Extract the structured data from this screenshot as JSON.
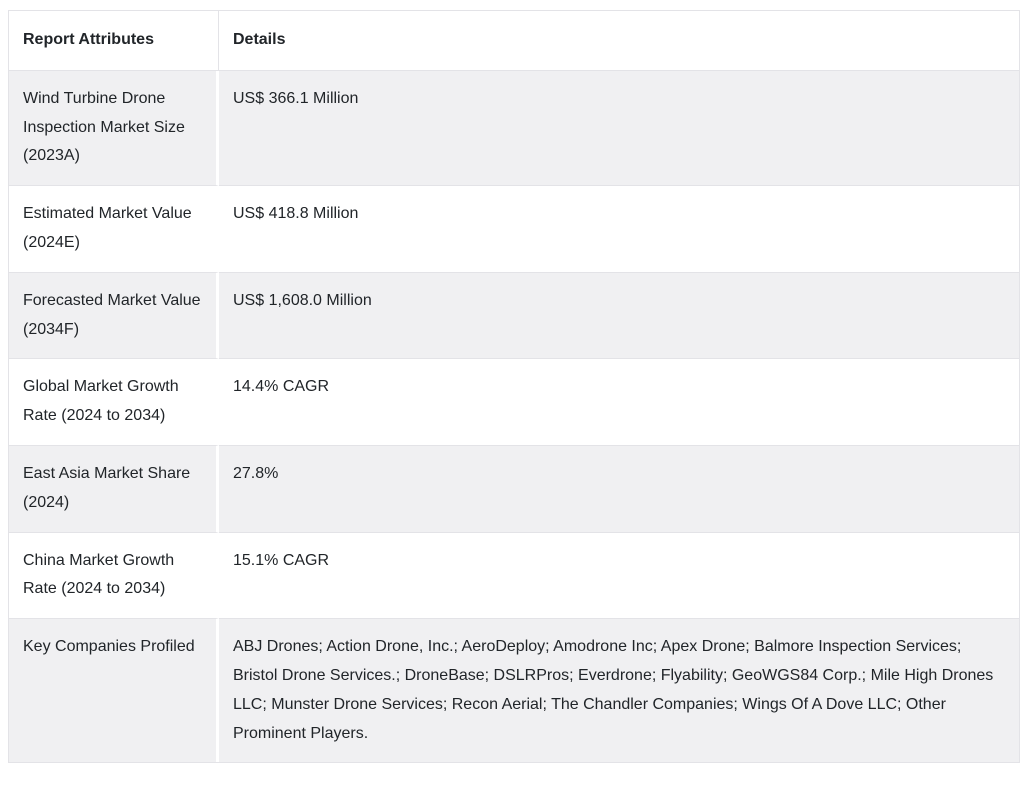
{
  "table": {
    "columns": [
      {
        "label": "Report Attributes"
      },
      {
        "label": "Details"
      }
    ],
    "rows": [
      {
        "attribute": "Wind Turbine Drone Inspection Market Size (2023A)",
        "detail": "US$ 366.1 Million"
      },
      {
        "attribute": "Estimated Market Value (2024E)",
        "detail": "US$ 418.8 Million"
      },
      {
        "attribute": "Forecasted Market Value (2034F)",
        "detail": "US$ 1,608.0 Million"
      },
      {
        "attribute": "Global Market Growth Rate (2024 to 2034)",
        "detail": "14.4% CAGR"
      },
      {
        "attribute": "East Asia Market Share (2024)",
        "detail": "27.8%"
      },
      {
        "attribute": "China Market Growth Rate (2024 to  2034)",
        "detail": "15.1% CAGR"
      },
      {
        "attribute": "Key Companies Profiled",
        "detail": "ABJ Drones; Action Drone, Inc.; AeroDeploy; Amodrone Inc; Apex Drone; Balmore Inspection Services; Bristol Drone Services.; DroneBase; DSLRPros; Everdrone; Flyability; GeoWGS84 Corp.; Mile High Drones LLC; Munster Drone Services; Recon Aerial; The Chandler Companies; Wings Of A Dove LLC; Other Prominent Players."
      }
    ],
    "colors": {
      "stripe_bg": "#f0f0f2",
      "border": "#e3e3e7",
      "text": "#212529"
    }
  }
}
